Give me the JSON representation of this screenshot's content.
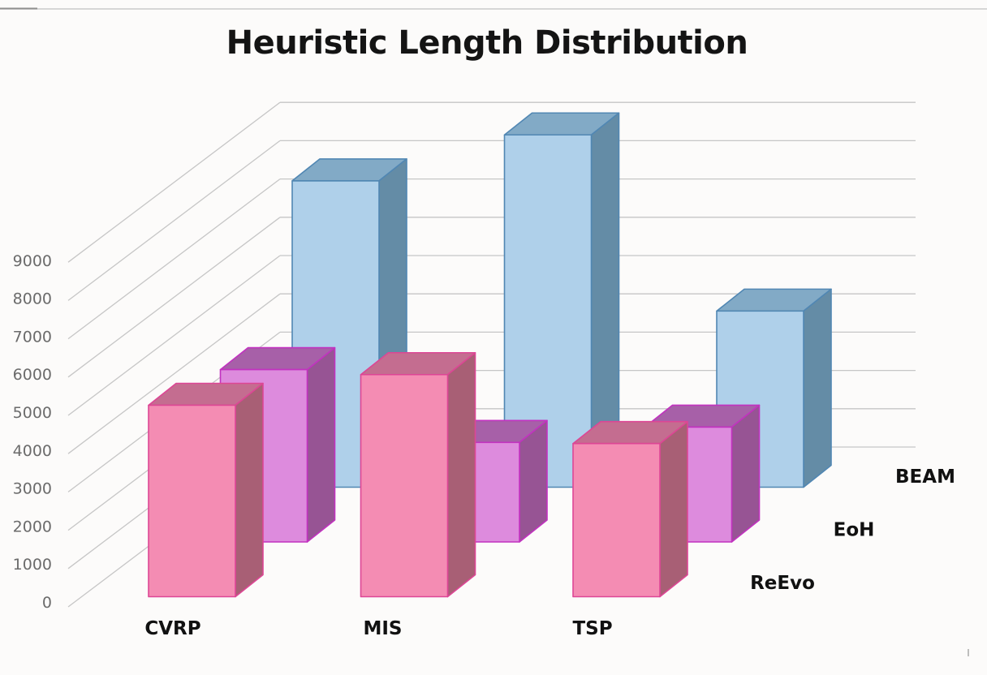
{
  "title": "Heuristic Length Distribution",
  "chart_data": {
    "type": "bar",
    "subtype": "3d-column",
    "title": "Heuristic Length Distribution",
    "categories": [
      "CVRP",
      "MIS",
      "TSP"
    ],
    "series": [
      {
        "name": "ReEvo",
        "depth_position": "front",
        "values": [
          5000,
          5800,
          4000
        ]
      },
      {
        "name": "EoH",
        "depth_position": "middle",
        "values": [
          4500,
          2600,
          3000
        ]
      },
      {
        "name": "BEAM",
        "depth_position": "back",
        "values": [
          8000,
          9200,
          4600
        ]
      }
    ],
    "y_ticks": [
      0,
      1000,
      2000,
      3000,
      4000,
      5000,
      6000,
      7000,
      8000,
      9000
    ],
    "ylim": [
      0,
      9000
    ],
    "xlabel": "",
    "ylabel": "",
    "grid": true,
    "legend_position": "depth-axis-labels-right"
  },
  "colors": {
    "background": "#fcfbfa",
    "grid": "#c6c6c6",
    "tick_label": "#6b6b6b",
    "category_label": "#111111",
    "series_label": "#111111",
    "title_text": "#141414",
    "series": {
      "ReEvo": {
        "front": "#f48cb3",
        "top": "#c46d90",
        "side": "#a85f75",
        "edge": "#dd4695"
      },
      "EoH": {
        "front": "#dd8bdd",
        "top": "#a760a8",
        "side": "#975494",
        "edge": "#c232c0"
      },
      "BEAM": {
        "front": "#afd0ea",
        "top": "#82aac6",
        "side": "#648ca6",
        "edge": "#5187b3"
      }
    }
  }
}
